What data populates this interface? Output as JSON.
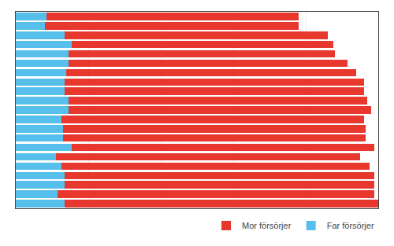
{
  "chart_data": {
    "type": "bar",
    "orientation": "horizontal",
    "stacked": true,
    "categories": [
      null,
      null,
      null,
      null,
      null,
      null,
      null,
      null,
      null,
      null,
      null,
      null,
      null,
      null,
      null,
      null,
      null,
      null,
      null,
      null,
      null
    ],
    "series": [
      {
        "name": "Far försörjer",
        "color": "#56bfeb",
        "values": [
          13.5,
          11.5,
          13.5,
          13.5,
          12.5,
          11.0,
          15.5,
          13.0,
          13.0,
          12.5,
          14.5,
          14.5,
          13.5,
          13.5,
          14.0,
          14.5,
          14.5,
          15.5,
          13.5,
          8.0,
          8.5
        ]
      },
      {
        "name": "Mor försörjer",
        "color": "#e8382d",
        "values": [
          86.5,
          87.5,
          85.5,
          85.5,
          85.0,
          84.0,
          83.5,
          83.5,
          83.5,
          83.5,
          83.5,
          82.5,
          82.5,
          82.5,
          80.0,
          77.0,
          73.5,
          72.0,
          72.5,
          70.0,
          69.5
        ]
      }
    ],
    "xlim": [
      0,
      100
    ],
    "xticks": [
      20,
      40,
      60,
      80,
      100
    ],
    "grid": true,
    "legend": "lower right",
    "tick_labels": false
  }
}
